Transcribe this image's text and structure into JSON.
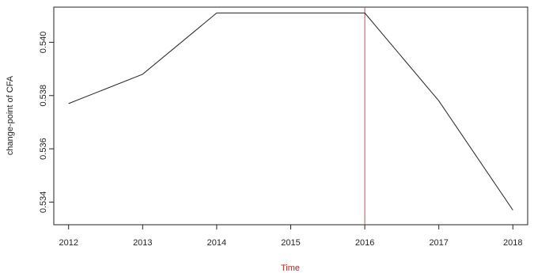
{
  "chart_data": {
    "type": "line",
    "title": "",
    "xlabel": "Time",
    "ylabel": "change-point of CFA",
    "x": [
      2012,
      2013,
      2014,
      2015,
      2016,
      2017,
      2018
    ],
    "series": [
      {
        "values": [
          0.5377,
          0.5388,
          0.5411,
          0.5411,
          0.5411,
          0.5378,
          0.5337
        ]
      }
    ],
    "x_ticks": [
      "2012",
      "2013",
      "2014",
      "2015",
      "2016",
      "2017",
      "2018"
    ],
    "y_ticks": [
      "0.534",
      "0.536",
      "0.538",
      "0.540"
    ],
    "xlim": [
      2011.8,
      2018.2
    ],
    "ylim": [
      0.53315,
      0.54132
    ],
    "vertical_line": {
      "x": 2016,
      "color": "#c0504d"
    },
    "grid": false,
    "colors": {
      "line": "#222222",
      "xlabel": "#a0322c",
      "ylabel": "#222222"
    }
  }
}
